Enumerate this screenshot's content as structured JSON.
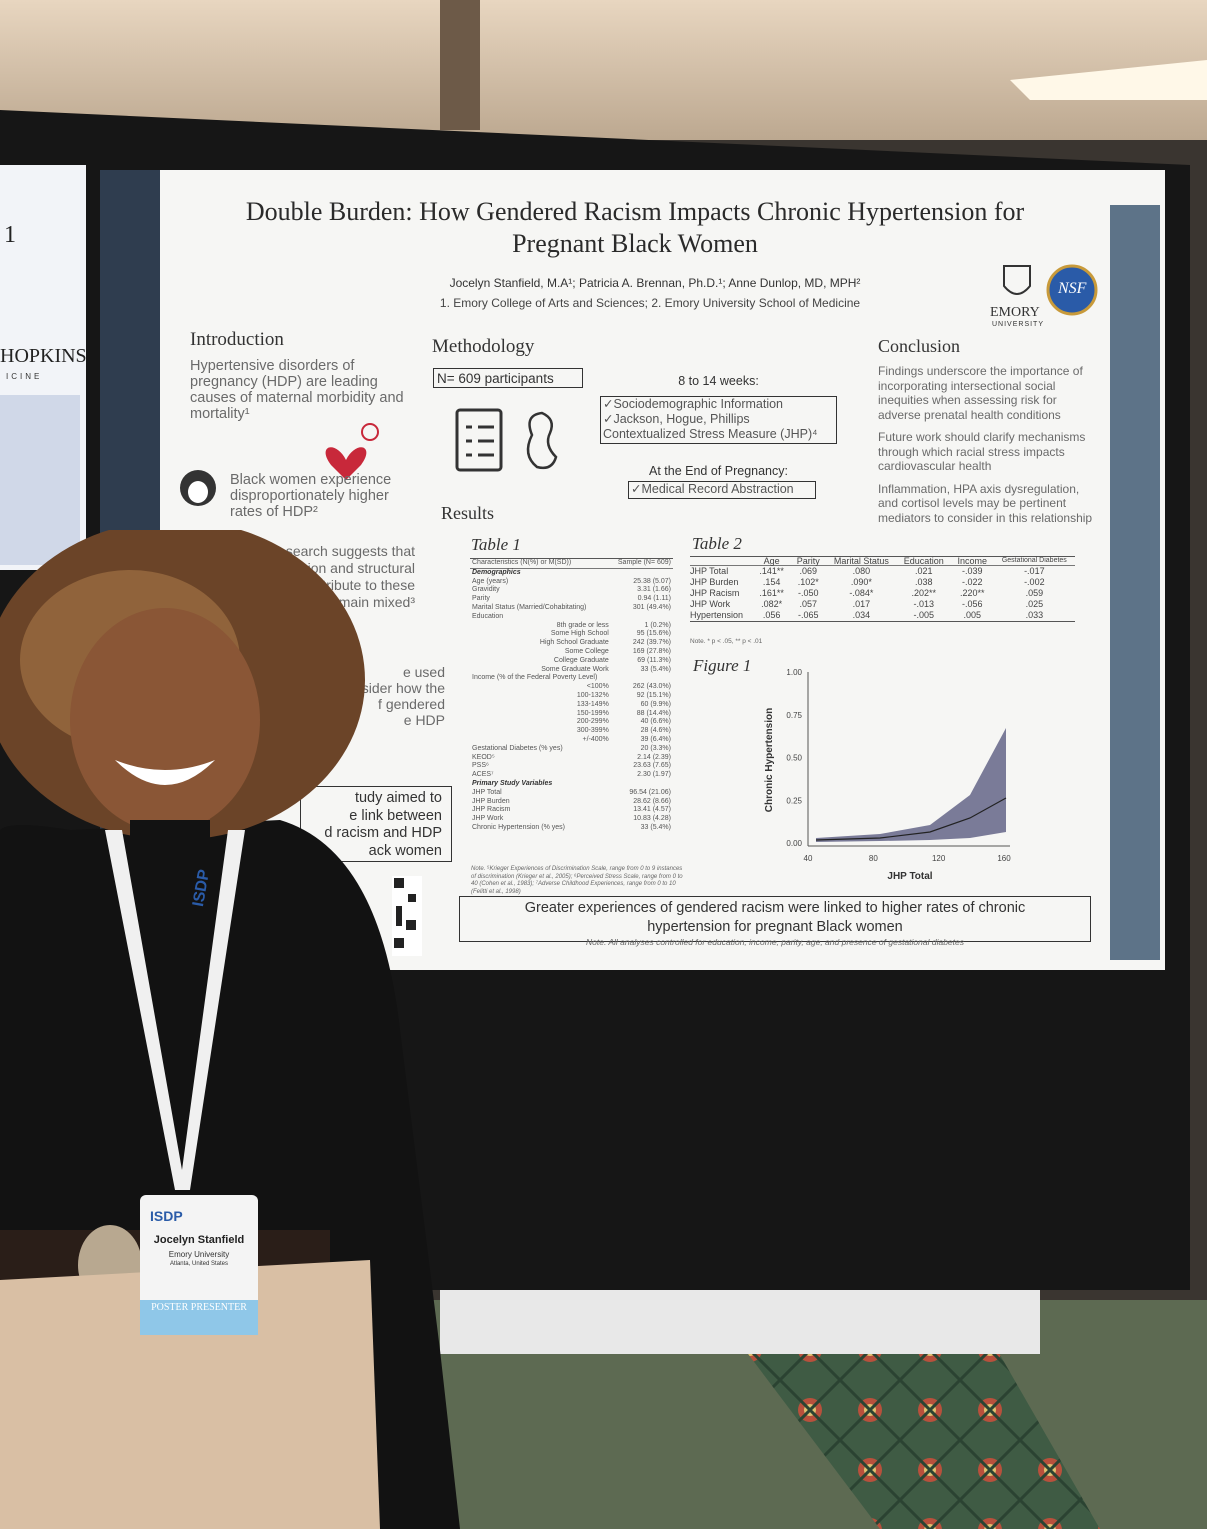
{
  "neighbor_poster": {
    "number": "1",
    "name": "HOPKINS",
    "sub": "ICINE"
  },
  "poster": {
    "title_line1": "Double Burden: How Gendered Racism Impacts Chronic Hypertension for",
    "title_line2": "Pregnant Black Women",
    "authors": "Jocelyn Stanfield, M.A¹; Patricia A. Brennan, Ph.D.¹; Anne Dunlop, MD, MPH²",
    "affiliations": "1. Emory College of Arts and Sciences; 2. Emory University School of Medicine",
    "logos": {
      "emory": "EMORY",
      "emory_sub": "UNIVERSITY",
      "nsf": "NSF"
    },
    "introduction": {
      "heading": "Introduction",
      "p1": "Hypertensive disorders of pregnancy (HDP) are leading causes of maternal morbidity and mortality¹",
      "p2": "Black women experience disproportionately higher rates of HDP²",
      "p3_fragments": [
        "While research suggests that",
        "sion and structural",
        "tribute to these",
        "remain mixed³"
      ],
      "p4_fragments": [
        "e used",
        "sider how the",
        "f gendered",
        "e HDP"
      ],
      "aim_fragments": [
        "tudy aimed to",
        "e link between",
        "d racism and HDP",
        "ack women"
      ]
    },
    "methodology": {
      "heading": "Methodology",
      "n": "N= 609 participants",
      "window1": "8 to 14 weeks:",
      "items1": [
        "✓Sociodemographic Information",
        "✓Jackson, Hogue, Phillips",
        "Contextualized Stress Measure (JHP)⁴"
      ],
      "window2": "At the End of Pregnancy:",
      "items2": [
        "✓Medical Record Abstraction"
      ]
    },
    "results": {
      "heading": "Results"
    },
    "table1": {
      "title": "Table 1",
      "header": [
        "Characteristics (N(%) or M(SD))",
        "Sample (N= 609)"
      ],
      "rows": [
        [
          "Demographics",
          ""
        ],
        [
          "Age (years)",
          "25.38 (5.07)"
        ],
        [
          "Gravidity",
          "3.31 (1.66)"
        ],
        [
          "Parity",
          "0.94 (1.11)"
        ],
        [
          "Marital Status (Married/Cohabitating)",
          "301 (49.4%)"
        ],
        [
          "Education",
          ""
        ],
        [
          "8th grade or less",
          "1 (0.2%)"
        ],
        [
          "Some High School",
          "95 (15.6%)"
        ],
        [
          "High School Graduate",
          "242 (39.7%)"
        ],
        [
          "Some College",
          "169 (27.8%)"
        ],
        [
          "College Graduate",
          "69 (11.3%)"
        ],
        [
          "Some Graduate Work",
          "33 (5.4%)"
        ],
        [
          "Income (% of the Federal Poverty Level)",
          ""
        ],
        [
          "<100%",
          "262 (43.0%)"
        ],
        [
          "100-132%",
          "92 (15.1%)"
        ],
        [
          "133-149%",
          "60 (9.9%)"
        ],
        [
          "150-199%",
          "88 (14.4%)"
        ],
        [
          "200-299%",
          "40 (6.6%)"
        ],
        [
          "300-399%",
          "28 (4.6%)"
        ],
        [
          "+/-400%",
          "39 (6.4%)"
        ],
        [
          "Gestational Diabetes (% yes)",
          "20 (3.3%)"
        ],
        [
          "KEOD⁵",
          "2.14 (2.39)"
        ],
        [
          "PSS⁶",
          "23.63 (7.65)"
        ],
        [
          "ACES⁷",
          "2.30 (1.97)"
        ],
        [
          "Primary Study Variables",
          ""
        ],
        [
          "JHP Total",
          "96.54 (21.06)"
        ],
        [
          "JHP Burden",
          "28.62 (8.66)"
        ],
        [
          "JHP Racism",
          "13.41 (4.57)"
        ],
        [
          "JHP Work",
          "10.83 (4.28)"
        ],
        [
          "Chronic Hypertension (% yes)",
          "33 (5.4%)"
        ]
      ],
      "note": "Note. ⁵Krieger Experiences of Discrimination Scale, range from 0 to 9 instances of discrimination (Krieger et al., 2005); ⁶Perceived Stress Scale, range from 0 to 40 (Cohen et al., 1983); ⁷Adverse Childhood Experiences, range from 0 to 10 (Felitti et al., 1998)"
    },
    "table2": {
      "title": "Table 2",
      "header": [
        "Age",
        "Parity",
        "Marital Status",
        "Education",
        "Income",
        "Gestational Diabetes"
      ],
      "rows": [
        [
          "JHP Total",
          ".141**",
          ".069",
          ".080",
          ".021",
          "-.039",
          "-.017"
        ],
        [
          "JHP Burden",
          ".154",
          ".102*",
          ".090*",
          ".038",
          "-.022",
          "-.002"
        ],
        [
          "JHP Racism",
          ".161**",
          "-.050",
          "-.084*",
          ".202**",
          ".220**",
          ".059"
        ],
        [
          "JHP Work",
          ".082*",
          ".057",
          ".017",
          "-.013",
          "-.056",
          ".025"
        ],
        [
          "Hypertension",
          ".056",
          "-.065",
          ".034",
          "-.005",
          ".005",
          ".033"
        ]
      ],
      "note": "Note. * p < .05, ** p < .01"
    },
    "figure1": {
      "title": "Figure 1",
      "y_label": "Chronic Hypertension",
      "x_label": "JHP Total",
      "y_ticks": [
        "1.00",
        "0.75",
        "0.50",
        "0.25",
        "0.00"
      ],
      "x_ticks": [
        "40",
        "80",
        "120",
        "160"
      ]
    },
    "conclusion": {
      "heading": "Conclusion",
      "paragraphs": [
        "Findings underscore the importance of incorporating intersectional social inequities when assessing risk for adverse prenatal health conditions",
        "Future work should clarify mechanisms through which racial stress impacts cardiovascular health",
        "Inflammation, HPA axis dysregulation, and cortisol levels may be pertinent mediators to consider in this relationship"
      ]
    },
    "banner": "Greater experiences of gendered racism were linked to higher rates of chronic hypertension for pregnant Black women",
    "footnote": "Note. All analyses controlled for education, income, parity, age, and presence of gestational diabetes"
  },
  "badge": {
    "org": "ISDP",
    "name": "Jocelyn Stanfield",
    "affiliation": "Emory University",
    "location": "Atlanta, United States",
    "role": "POSTER PRESENTER"
  },
  "lanyard": "ISDP"
}
